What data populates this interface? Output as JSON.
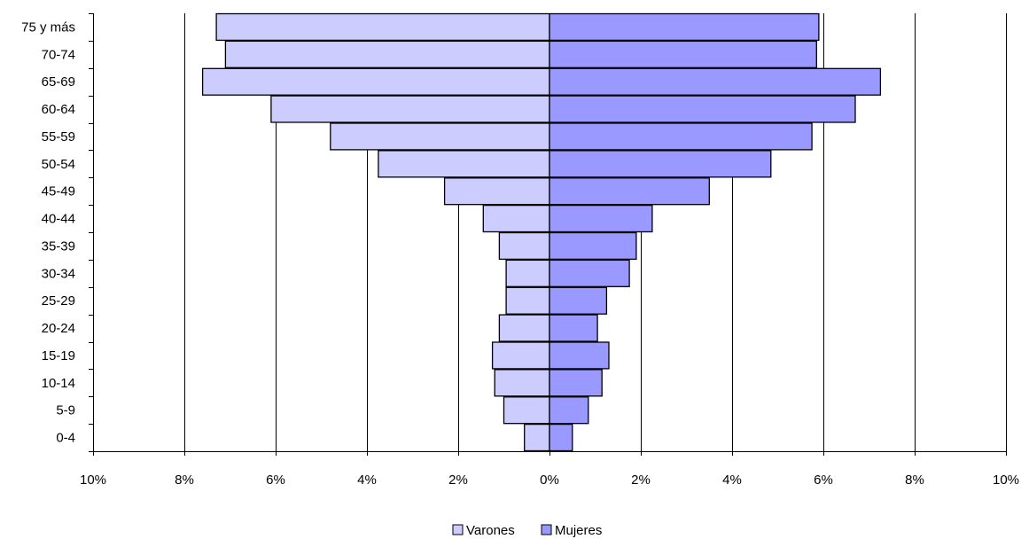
{
  "chart_data": {
    "type": "bar",
    "orientation": "horizontal",
    "subtype": "population-pyramid",
    "categories": [
      "0-4",
      "5-9",
      "10-14",
      "15-19",
      "20-24",
      "25-29",
      "30-34",
      "35-39",
      "40-44",
      "45-49",
      "50-54",
      "55-59",
      "60-64",
      "65-69",
      "70-74",
      "75 y más"
    ],
    "series": [
      {
        "name": "Varones",
        "color": "#ccccff",
        "side": "left",
        "values": [
          0.55,
          1.0,
          1.2,
          1.25,
          1.1,
          0.95,
          0.95,
          1.1,
          1.45,
          2.3,
          3.75,
          4.8,
          6.1,
          7.6,
          7.1,
          7.3
        ]
      },
      {
        "name": "Mujeres",
        "color": "#9999ff",
        "side": "right",
        "values": [
          0.5,
          0.85,
          1.15,
          1.3,
          1.05,
          1.25,
          1.75,
          1.9,
          2.25,
          3.5,
          4.85,
          5.75,
          6.7,
          7.25,
          5.85,
          5.9
        ]
      }
    ],
    "xlim": [
      -10,
      10
    ],
    "xticks": [
      "10%",
      "8%",
      "6%",
      "4%",
      "2%",
      "0%",
      "2%",
      "4%",
      "6%",
      "8%",
      "10%"
    ],
    "xlabel": "",
    "ylabel": "",
    "title": "",
    "grid": "vertical",
    "legend": "bottom-center"
  }
}
